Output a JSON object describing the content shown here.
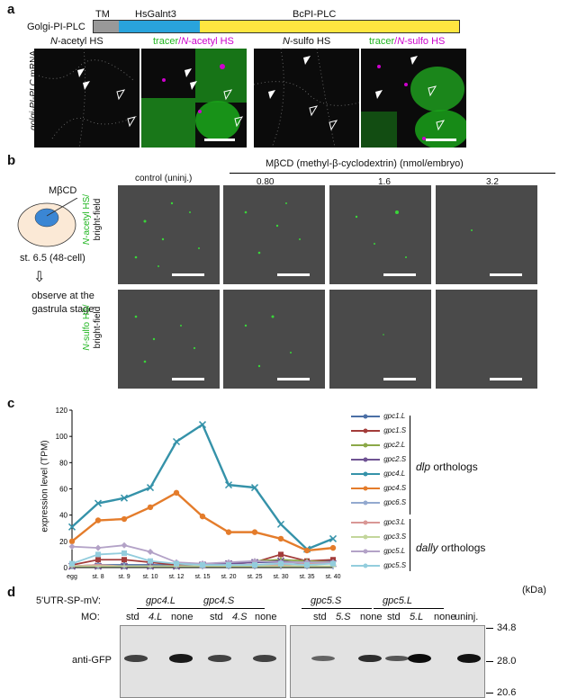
{
  "panel_a": {
    "letter": "a",
    "construct_label": "Golgi-PI-PLC",
    "domains": [
      {
        "name": "TM",
        "color": "#999999"
      },
      {
        "name": "HsGalnt3",
        "color": "#29a3dc"
      },
      {
        "name": "BcPI-PLC",
        "color": "#ffe640"
      }
    ],
    "side_label_gene": "golgi-PI-PLC",
    "side_label_suffix": " mRNA",
    "images": [
      {
        "prefix": "N",
        "rest": "-acetyl HS"
      },
      {
        "tracer": "tracer",
        "sep": "/",
        "prefix": "N",
        "rest": "-acetyl HS"
      },
      {
        "prefix": "N",
        "rest": "-sulfo HS"
      },
      {
        "tracer": "tracer",
        "sep": "/",
        "prefix": "N",
        "rest": "-sulfo HS"
      }
    ]
  },
  "panel_b": {
    "letter": "b",
    "embryo_label": "MβCD",
    "stage_label": "st. 6.5 (48-cell)",
    "observe_label": "observe at the gastrula stage",
    "treatment_title": "MβCD (methyl-β-cyclodextrin) (nmol/embryo)",
    "columns": [
      "control (uninj.)",
      "0.80",
      "1.6",
      "3.2"
    ],
    "row1": {
      "prefix": "N",
      "rest": "-acetyl HS/",
      "line2": "bright-field"
    },
    "row2": {
      "prefix": "N",
      "rest": "-sulfo HS/",
      "line2": "bright-field"
    }
  },
  "panel_c": {
    "letter": "c",
    "group_dlp": "dlp",
    "group_dlp_suffix": " orthologs",
    "group_dally": "dally",
    "group_dally_suffix": " orthologs"
  },
  "chart_data": {
    "type": "line",
    "ylabel": "expression level (TPM)",
    "xlabel": "",
    "ylim": [
      0,
      120
    ],
    "yticks": [
      0,
      20,
      40,
      60,
      80,
      100,
      120
    ],
    "categories": [
      "egg",
      "st. 8",
      "st. 9",
      "st. 10",
      "st. 12",
      "st. 15",
      "st. 20",
      "st. 25",
      "st. 30",
      "st. 35",
      "st. 40"
    ],
    "series": [
      {
        "name": "gpc1.L",
        "color": "#4b6fa5",
        "marker": "diamond",
        "values": [
          1,
          2,
          2,
          2,
          2,
          3,
          3,
          4,
          4,
          4,
          5
        ]
      },
      {
        "name": "gpc1.S",
        "color": "#a33c3a",
        "marker": "square",
        "values": [
          2,
          6,
          6,
          4,
          2,
          2,
          3,
          4,
          10,
          5,
          6
        ]
      },
      {
        "name": "gpc2.L",
        "color": "#8ba848",
        "marker": "triangle",
        "values": [
          1,
          1,
          1,
          1,
          1,
          2,
          3,
          5,
          6,
          5,
          4
        ]
      },
      {
        "name": "gpc2.S",
        "color": "#6f5393",
        "marker": "x",
        "values": [
          1,
          1,
          1,
          1,
          1,
          2,
          3,
          4,
          5,
          3,
          3
        ]
      },
      {
        "name": "gpc4.L",
        "color": "#3592a9",
        "marker": "x",
        "values": [
          31,
          49,
          53,
          61,
          96,
          109,
          63,
          61,
          33,
          14,
          22
        ]
      },
      {
        "name": "gpc4.S",
        "color": "#e47c2b",
        "marker": "circle",
        "values": [
          20,
          36,
          37,
          46,
          57,
          39,
          27,
          27,
          22,
          13,
          15
        ]
      },
      {
        "name": "gpc6.S",
        "color": "#93a9cf",
        "marker": "plus",
        "values": [
          1,
          1,
          1,
          1,
          1,
          1,
          1,
          1,
          1,
          1,
          1
        ]
      },
      {
        "name": "gpc3.L",
        "color": "#d99795",
        "marker": "dash",
        "values": [
          1,
          2,
          1,
          1,
          1,
          1,
          2,
          2,
          2,
          3,
          3
        ]
      },
      {
        "name": "gpc3.S",
        "color": "#c3d69b",
        "marker": "dash",
        "values": [
          1,
          1,
          1,
          1,
          1,
          1,
          1,
          1,
          1,
          1,
          1
        ]
      },
      {
        "name": "gpc5.L",
        "color": "#b3a2c7",
        "marker": "diamond",
        "values": [
          16,
          15,
          17,
          12,
          4,
          3,
          4,
          5,
          4,
          4,
          4
        ]
      },
      {
        "name": "gpc5.S",
        "color": "#93cddd",
        "marker": "square",
        "values": [
          3,
          10,
          11,
          5,
          3,
          2,
          2,
          2,
          3,
          2,
          3
        ]
      }
    ]
  },
  "panel_d": {
    "letter": "d",
    "construct_row_label": "5'UTR-SP-mV:",
    "mo_row_label": "MO:",
    "groups": [
      {
        "gene": "gpc4.L",
        "lanes": [
          {
            "t": "std",
            "it": false
          },
          {
            "t": "4.L",
            "it": true
          },
          {
            "t": "none",
            "it": false
          }
        ]
      },
      {
        "gene": "gpc4.S",
        "lanes": [
          {
            "t": "std",
            "it": false
          },
          {
            "t": "4.S",
            "it": true
          },
          {
            "t": "none",
            "it": false
          }
        ]
      },
      {
        "gene": "gpc5.S",
        "lanes": [
          {
            "t": "std",
            "it": false
          },
          {
            "t": "5.S",
            "it": true
          },
          {
            "t": "none",
            "it": false
          }
        ]
      },
      {
        "gene": "gpc5.L",
        "lanes": [
          {
            "t": "std",
            "it": false
          },
          {
            "t": "5.L",
            "it": true
          },
          {
            "t": "none",
            "it": false
          }
        ]
      }
    ],
    "uninj_label": "uninj.",
    "antibody_label": "anti-GFP",
    "kda_label": "(kDa)",
    "markers": [
      "34.8",
      "28.0",
      "20.6"
    ],
    "band_intensity": [
      0.6,
      0.0,
      0.9,
      0.6,
      0.0,
      0.6,
      0.35,
      0.0,
      0.75,
      0.45,
      1.0,
      0.0,
      0.95,
      0.0
    ]
  }
}
